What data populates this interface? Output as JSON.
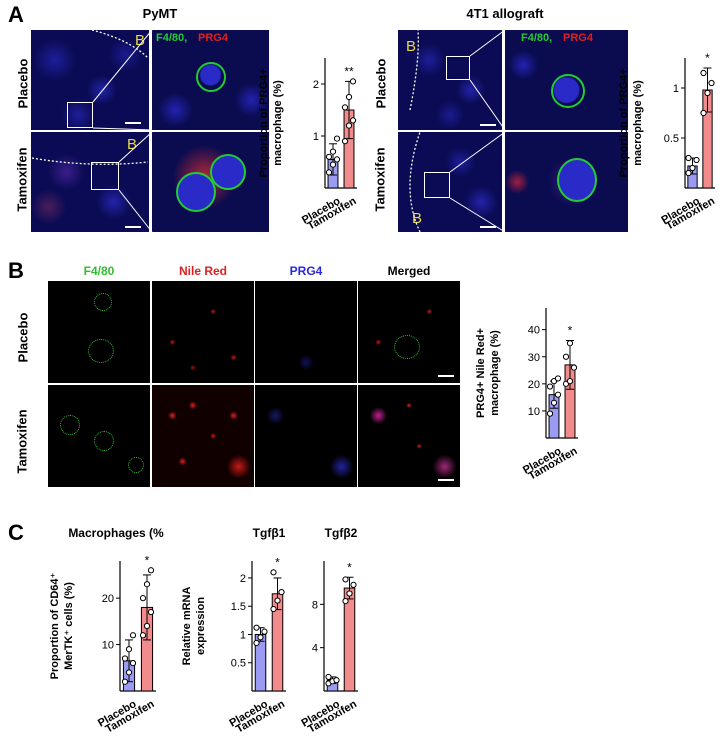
{
  "panels": {
    "A": {
      "letter": "A",
      "left_title": "PyMT",
      "right_title": "4T1 allograft",
      "row_labels": [
        "Placebo",
        "Tamoxifen"
      ],
      "region_label": "B",
      "channel_label_green": "F4/80,",
      "channel_label_red": " PRG4"
    },
    "B": {
      "letter": "B",
      "column_headers": [
        "F4/80",
        "Nile Red",
        "PRG4",
        "Merged"
      ],
      "header_colors": [
        "#2fbf2f",
        "#e02020",
        "#2a2ad8",
        "#000000"
      ],
      "row_labels": [
        "Placebo",
        "Tamoxifen"
      ]
    },
    "C": {
      "letter": "C"
    }
  },
  "colors": {
    "placebo_bar": "#9b9bf2",
    "tamoxifen_bar": "#f28b8b",
    "microscopy_bg": "#0a0a40",
    "nucleus": "#2a2ae0",
    "green_channel": "#22cc33",
    "red_channel": "#e02020",
    "region_label": "#e8d84a"
  },
  "chart_data": [
    {
      "id": "A1",
      "type": "bar",
      "categories": [
        "Placebo",
        "Tamoxifen"
      ],
      "values": [
        0.55,
        1.5
      ],
      "errors": [
        0.3,
        0.55
      ],
      "points": [
        [
          0.3,
          0.45,
          0.55,
          0.6,
          0.7,
          0.95
        ],
        [
          0.9,
          1.2,
          1.3,
          1.55,
          1.75,
          2.05
        ]
      ],
      "ylabel": "Proportion of PRG4+\nmacrophage (%)",
      "ylim": [
        0,
        2.5
      ],
      "yticks": [
        1,
        2
      ],
      "significance": "**"
    },
    {
      "id": "A2",
      "type": "bar",
      "categories": [
        "Placebo",
        "Tamoxifen"
      ],
      "values": [
        0.22,
        0.98
      ],
      "errors": [
        0.08,
        0.22
      ],
      "points": [
        [
          0.15,
          0.2,
          0.28,
          0.3
        ],
        [
          0.75,
          0.95,
          1.05,
          1.15
        ]
      ],
      "ylabel": "Proportion of PRG4+\nmacrophage (%)",
      "ylim": [
        0,
        1.3
      ],
      "yticks": [
        0.5,
        1.0
      ],
      "significance": "*"
    },
    {
      "id": "B1",
      "type": "bar",
      "categories": [
        "Placebo",
        "Tamoxifen"
      ],
      "values": [
        16,
        27
      ],
      "errors": [
        5,
        9
      ],
      "points": [
        [
          9,
          13,
          16,
          19,
          21,
          22
        ],
        [
          20,
          21,
          26,
          30,
          35
        ]
      ],
      "ylabel": "PRG4+ Nile Red+\nmacrophage (%)",
      "ylim": [
        0,
        48
      ],
      "yticks": [
        10,
        20,
        30,
        40
      ],
      "significance": "*"
    },
    {
      "id": "C1",
      "type": "bar",
      "title": "Macrophages (%)",
      "categories": [
        "Placebo",
        "Tamoxifen"
      ],
      "values": [
        6.5,
        18
      ],
      "errors": [
        4.5,
        7
      ],
      "points": [
        [
          2,
          4,
          6,
          7,
          9,
          12
        ],
        [
          12,
          14,
          17,
          20,
          23,
          26
        ]
      ],
      "ylabel": "Proportion of CD64⁺\nMerTK⁺ cells (%)",
      "ylim": [
        0,
        28
      ],
      "yticks": [
        10,
        20
      ],
      "significance": "*"
    },
    {
      "id": "C2",
      "type": "bar",
      "title": "Tgfβ1",
      "categories": [
        "Placebo",
        "Tamoxifen"
      ],
      "values": [
        1.0,
        1.72
      ],
      "errors": [
        0.12,
        0.28
      ],
      "points": [
        [
          0.85,
          0.95,
          1.05,
          1.12
        ],
        [
          1.45,
          1.6,
          1.75,
          2.1
        ]
      ],
      "ylabel": "Relative mRNA\nexpression",
      "ylim": [
        0,
        2.3
      ],
      "yticks": [
        0.5,
        1.0,
        1.5,
        2.0
      ],
      "significance": "*"
    },
    {
      "id": "C3",
      "type": "bar",
      "title": "Tgfβ2",
      "categories": [
        "Placebo",
        "Tamoxifen"
      ],
      "values": [
        1.0,
        9.5
      ],
      "errors": [
        0.3,
        1.0
      ],
      "points": [
        [
          0.7,
          0.9,
          1.0,
          1.3
        ],
        [
          8.3,
          9.0,
          9.8,
          10.3
        ]
      ],
      "ylabel": "",
      "ylim": [
        0,
        12
      ],
      "yticks": [
        4,
        8
      ],
      "significance": "*"
    }
  ]
}
